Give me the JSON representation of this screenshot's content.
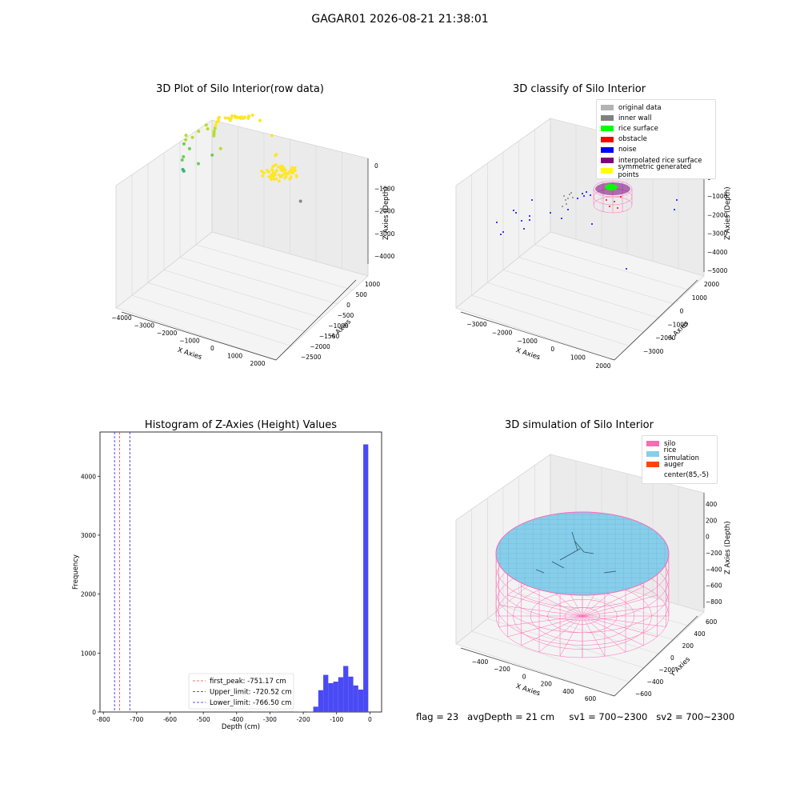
{
  "suptitle": "GAGAR01 2026-08-21 21:38:01",
  "status": {
    "flag": "flag = 23",
    "avgDepth": "avgDepth = 21 cm",
    "sv1": "sv1 = 700~2300",
    "sv2": "sv2 = 700~2300"
  },
  "chart_data": [
    {
      "type": "scatter",
      "title": "3D Plot of Silo Interior(row data)",
      "xlabel": "X Axies",
      "ylabel": "Y Axies",
      "zlabel": "Z Axies (Depth)",
      "x_ticks": [
        "−4000",
        "−3000",
        "−2000",
        "−1000",
        "0",
        "1000",
        "2000"
      ],
      "y_ticks": [
        "1000",
        "500",
        "0",
        "−500",
        "−1000",
        "−1500",
        "−2000",
        "−2500"
      ],
      "z_ticks": [
        "0",
        "−1000",
        "−2000",
        "−3000",
        "−4000"
      ],
      "xlim": [
        -4000,
        2000
      ],
      "ylim": [
        -2500,
        1000
      ],
      "zlim": [
        -4000,
        0
      ],
      "colormap": [
        "#35b779",
        "#6ece58",
        "#b5de2b",
        "#fde725"
      ],
      "points": [
        {
          "x": -3500,
          "y": -700,
          "z": -3100
        },
        {
          "x": -3480,
          "y": -720,
          "z": -3150
        },
        {
          "x": -3300,
          "y": -500,
          "z": -2600
        },
        {
          "x": -3100,
          "y": -300,
          "z": -2100
        },
        {
          "x": -3000,
          "y": -800,
          "z": -2900
        },
        {
          "x": -2900,
          "y": 0,
          "z": -2300
        },
        {
          "x": -2800,
          "y": -200,
          "z": -2100
        },
        {
          "x": -2600,
          "y": -100,
          "z": -1700
        },
        {
          "x": -2500,
          "y": 300,
          "z": -1500
        },
        {
          "x": -2400,
          "y": 400,
          "z": -1300
        },
        {
          "x": -2300,
          "y": -600,
          "z": -2400
        },
        {
          "x": -2100,
          "y": 200,
          "z": -1250
        },
        {
          "x": -1900,
          "y": 100,
          "z": -1100
        },
        {
          "x": -1800,
          "y": 150,
          "z": -1150
        },
        {
          "x": -1700,
          "y": 0,
          "z": -1400
        },
        {
          "x": -1650,
          "y": 50,
          "z": -1300
        },
        {
          "x": -1600,
          "y": 100,
          "z": -1200
        },
        {
          "x": -1550,
          "y": 120,
          "z": -1100
        },
        {
          "x": -1500,
          "y": 150,
          "z": -1000
        },
        {
          "x": -1450,
          "y": 160,
          "z": -900
        },
        {
          "x": -1400,
          "y": 180,
          "z": -850
        },
        {
          "x": -1350,
          "y": 200,
          "z": -800
        },
        {
          "x": -1300,
          "y": 250,
          "z": -700
        },
        {
          "x": -1250,
          "y": 280,
          "z": -650
        },
        {
          "x": -1000,
          "y": 300,
          "z": -600
        },
        {
          "x": -900,
          "y": 200,
          "z": -700
        },
        {
          "x": -800,
          "y": 400,
          "z": -500
        },
        {
          "x": -700,
          "y": 350,
          "z": -450
        },
        {
          "x": -600,
          "y": 500,
          "z": -400
        },
        {
          "x": -500,
          "y": 450,
          "z": -350
        },
        {
          "x": -400,
          "y": 550,
          "z": -300
        },
        {
          "x": -300,
          "y": 600,
          "z": -250
        },
        {
          "x": -200,
          "y": 650,
          "z": -200
        },
        {
          "x": -100,
          "y": 700,
          "z": -150
        },
        {
          "x": 0,
          "y": 750,
          "z": -120
        },
        {
          "x": 100,
          "y": 700,
          "z": -100
        },
        {
          "x": 200,
          "y": 650,
          "z": -80
        },
        {
          "x": 300,
          "y": 600,
          "z": -60
        },
        {
          "x": -150,
          "y": 550,
          "z": -250
        },
        {
          "x": -50,
          "y": 600,
          "z": -220
        },
        {
          "x": 50,
          "y": 500,
          "z": -260
        },
        {
          "x": -250,
          "y": 450,
          "z": -320
        },
        {
          "x": 400,
          "y": 400,
          "z": -300
        },
        {
          "x": 1300,
          "y": 900,
          "z": -200
        },
        {
          "x": 1200,
          "y": 600,
          "z": -900
        },
        {
          "x": 1150,
          "y": 580,
          "z": -950
        },
        {
          "x": -1800,
          "y": -400,
          "z": -2000
        },
        {
          "x": -200,
          "y": -2000,
          "z": -4000
        }
      ]
    },
    {
      "type": "scatter",
      "title": "3D classify of Silo Interior",
      "xlabel": "X Axies",
      "ylabel": "Y Axies",
      "zlabel": "Z Axies (Depth)",
      "x_ticks": [
        "−3000",
        "−2000",
        "−1000",
        "0",
        "1000",
        "2000"
      ],
      "y_ticks": [
        "2000",
        "1000",
        "0",
        "−1000",
        "−2000",
        "−3000"
      ],
      "z_ticks": [
        "0",
        "−1000",
        "−2000",
        "−3000",
        "−4000",
        "−5000"
      ],
      "xlim": [
        -3500,
        2300
      ],
      "ylim": [
        -3500,
        2300
      ],
      "zlim": [
        -5000,
        0
      ],
      "legend": [
        {
          "label": "original data",
          "color": "#b3b3b3"
        },
        {
          "label": "inner wall",
          "color": "#808080"
        },
        {
          "label": "rice surface",
          "color": "#00ff00"
        },
        {
          "label": "obstacle",
          "color": "#ff0000"
        },
        {
          "label": "noise",
          "color": "#0000ff"
        },
        {
          "label": "interpolated rice surface",
          "color": "#800080"
        },
        {
          "label": "symmetric generated points",
          "color": "#ffff00"
        }
      ],
      "legend_position": "top-right"
    },
    {
      "type": "bar",
      "title": "Histogram of Z-Axies (Height) Values",
      "xlabel": "Depth (cm)",
      "ylabel": "Frequency",
      "xlim": [
        -810,
        35
      ],
      "ylim": [
        0,
        4750
      ],
      "x_ticks": [
        -800,
        -700,
        -600,
        -500,
        -400,
        -300,
        -200,
        -100,
        0
      ],
      "y_ticks": [
        0,
        1000,
        2000,
        3000,
        4000
      ],
      "bar_color": "#4a4af5",
      "bins": [
        {
          "x0": -290,
          "x1": -275,
          "count": 4
        },
        {
          "x0": -230,
          "x1": -215,
          "count": 4
        },
        {
          "x0": -215,
          "x1": -200,
          "count": 6
        },
        {
          "x0": -185,
          "x1": -170,
          "count": 5
        },
        {
          "x0": -170,
          "x1": -155,
          "count": 90
        },
        {
          "x0": -155,
          "x1": -140,
          "count": 370
        },
        {
          "x0": -140,
          "x1": -125,
          "count": 630
        },
        {
          "x0": -125,
          "x1": -110,
          "count": 490
        },
        {
          "x0": -110,
          "x1": -95,
          "count": 515
        },
        {
          "x0": -95,
          "x1": -80,
          "count": 590
        },
        {
          "x0": -80,
          "x1": -65,
          "count": 780
        },
        {
          "x0": -65,
          "x1": -50,
          "count": 600
        },
        {
          "x0": -50,
          "x1": -35,
          "count": 450
        },
        {
          "x0": -35,
          "x1": -20,
          "count": 380
        },
        {
          "x0": -20,
          "x1": -5,
          "count": 4540
        }
      ],
      "vlines": [
        {
          "label": "first_peak: -751.17 cm",
          "x": -751.17,
          "color": "#ee4444"
        },
        {
          "label": "Upper_limit: -720.52 cm",
          "x": -720.52,
          "color": "#2222dd"
        },
        {
          "label": "Lower_limit: -766.50 cm",
          "x": -766.5,
          "color": "#2222dd"
        }
      ],
      "legend_position": "lower-center"
    },
    {
      "type": "surface",
      "title": "3D simulation of Silo Interior",
      "xlabel": "X Axies",
      "ylabel": "Y Axies",
      "zlabel": "Z Axies (Depth)",
      "x_ticks": [
        "−400",
        "−200",
        "0",
        "200",
        "400",
        "600"
      ],
      "y_ticks": [
        "600",
        "400",
        "200",
        "0",
        "−200",
        "−400",
        "−600"
      ],
      "z_ticks": [
        "400",
        "200",
        "0",
        "−200",
        "−400",
        "−600",
        "−800"
      ],
      "legend": [
        {
          "label": "silo",
          "color": "#ff69b4"
        },
        {
          "label": "rice simulation",
          "color": "#87ceeb"
        },
        {
          "label": "auger",
          "color": "#ff4500"
        },
        {
          "label": "center(85,-5)",
          "color": ""
        }
      ],
      "legend_position": "top-right"
    }
  ]
}
